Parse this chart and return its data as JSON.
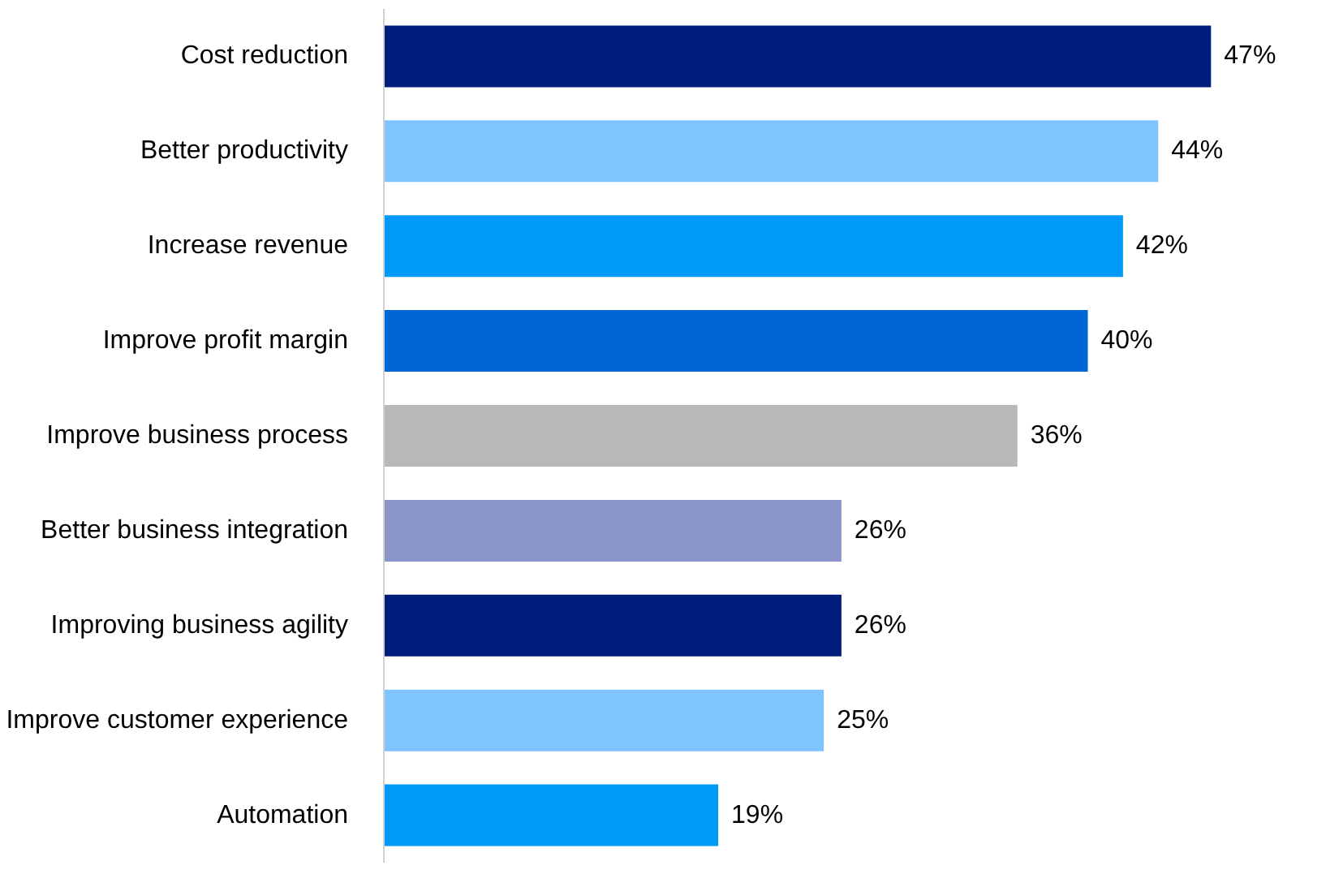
{
  "chart_data": {
    "type": "bar",
    "orientation": "horizontal",
    "tick_labels": "y",
    "grid": false,
    "categories": [
      "Cost reduction",
      "Better productivity",
      "Increase revenue",
      "Improve profit margin",
      "Improve business process",
      "Better business integration",
      "Improving business agility",
      "Improve customer experience",
      "Automation"
    ],
    "values": [
      47,
      44,
      42,
      40,
      36,
      26,
      26,
      25,
      19
    ],
    "value_labels": [
      "47%",
      "44%",
      "42%",
      "40%",
      "36%",
      "26%",
      "26%",
      "25%",
      "19%"
    ],
    "colors": [
      "#001e7c",
      "#80c4ff",
      "#0099f7",
      "#0066d6",
      "#b8b8b8",
      "#8a94c8",
      "#001e7c",
      "#80c4ff",
      "#0099f7"
    ]
  }
}
